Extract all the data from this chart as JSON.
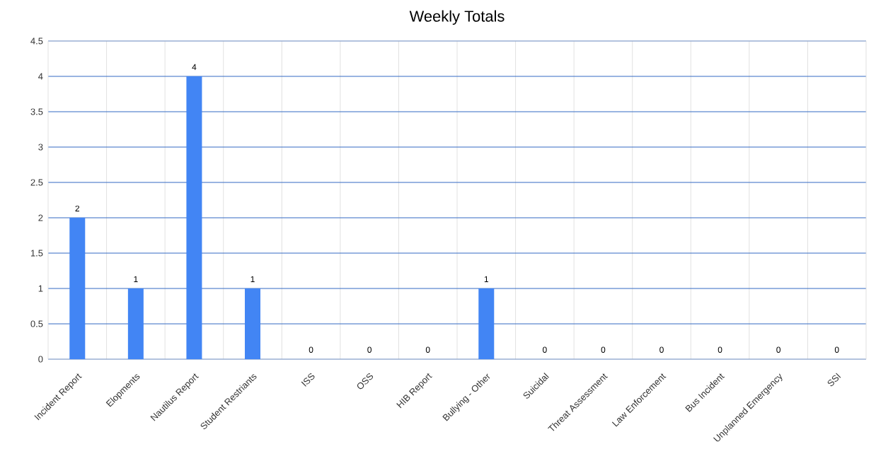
{
  "chart_data": {
    "type": "bar",
    "title": "Weekly Totals",
    "categories": [
      "Incident Report",
      "Elopments",
      "Nautilus Report",
      "Student Restriants",
      "ISS",
      "OSS",
      "HIB Report",
      "Bullying - Other",
      "Suicidal",
      "Threat Assessment",
      "Law Enforcement",
      "Bus Incident",
      "Unplanned Emergency",
      "SSI"
    ],
    "values": [
      2,
      1,
      4,
      1,
      0,
      0,
      0,
      1,
      0,
      0,
      0,
      0,
      0,
      0
    ],
    "color": "#4285f4",
    "ylim": [
      0,
      4.5
    ],
    "yticks": [
      0,
      0.5,
      1,
      1.5,
      2,
      2.5,
      3,
      3.5,
      4,
      4.5
    ],
    "grid": true,
    "data_labels": true
  }
}
